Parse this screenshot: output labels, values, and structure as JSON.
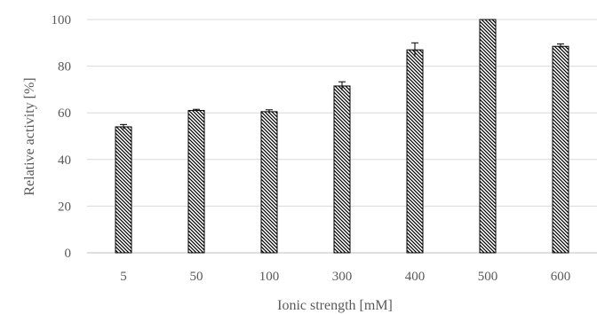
{
  "chart_data": {
    "type": "bar",
    "categories": [
      "5",
      "50",
      "100",
      "300",
      "400",
      "500",
      "600"
    ],
    "values": [
      54,
      61,
      60.5,
      71.5,
      87,
      100,
      88.5
    ],
    "errors": [
      1,
      0.5,
      0.8,
      1.8,
      3,
      0,
      1
    ],
    "xlabel": "Ionic strength [mM]",
    "ylabel": "Relative activity [%]",
    "ylim": [
      0,
      100
    ],
    "yticks": [
      0,
      20,
      40,
      60,
      80,
      100
    ],
    "grid": true,
    "bar_pattern": "diagonal-hatch",
    "colors": {
      "gridline": "#d9d9d9",
      "axis": "#bfbfbf",
      "bar_stroke": "#000000",
      "text": "#595959"
    }
  }
}
